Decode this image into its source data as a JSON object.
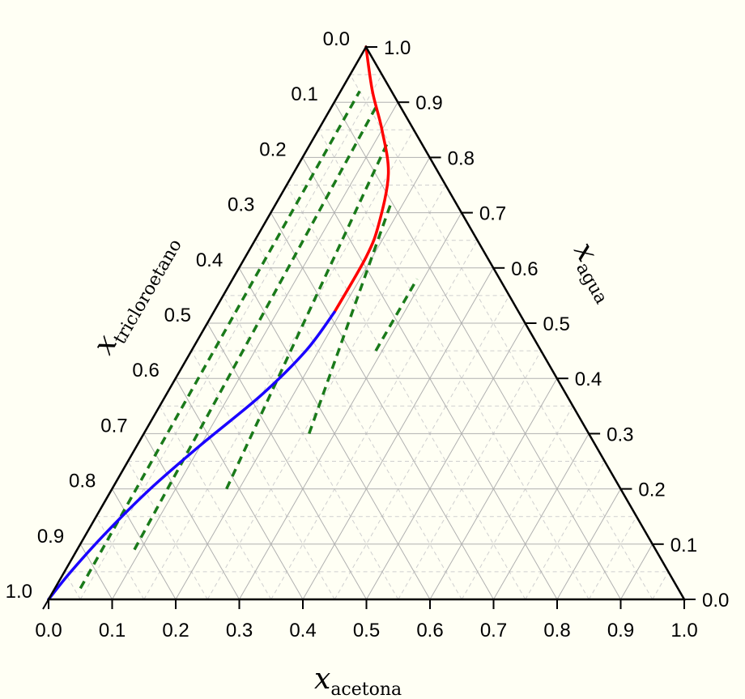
{
  "chart_data": {
    "type": "ternary",
    "axes": {
      "bottom": {
        "symbol": "x",
        "subscript": "acetona",
        "ticks": [
          "0.0",
          "0.1",
          "0.2",
          "0.3",
          "0.4",
          "0.5",
          "0.6",
          "0.7",
          "0.8",
          "0.9",
          "1.0"
        ]
      },
      "right": {
        "symbol": "x",
        "subscript": "agua",
        "ticks": [
          "0.0",
          "0.1",
          "0.2",
          "0.3",
          "0.4",
          "0.5",
          "0.6",
          "0.7",
          "0.8",
          "0.9",
          "1.0"
        ]
      },
      "left": {
        "symbol": "x",
        "subscript": "tricloroetano",
        "ticks": [
          "0.0",
          "0.1",
          "0.2",
          "0.3",
          "0.4",
          "0.5",
          "0.6",
          "0.7",
          "0.8",
          "0.9",
          "1.0"
        ]
      }
    },
    "grid": true,
    "minor_grid": true,
    "series": [
      {
        "role": "binodal_upper",
        "color": "#ff0000",
        "points": [
          {
            "acetona": 0.0,
            "agua": 1.0
          },
          {
            "acetona": 0.05,
            "agua": 0.92
          },
          {
            "acetona": 0.1,
            "agua": 0.85
          },
          {
            "acetona": 0.15,
            "agua": 0.77
          },
          {
            "acetona": 0.18,
            "agua": 0.68
          },
          {
            "acetona": 0.19,
            "agua": 0.62
          },
          {
            "acetona": 0.19,
            "agua": 0.52
          }
        ]
      },
      {
        "role": "binodal_lower",
        "color": "#1a00ff",
        "points": [
          {
            "acetona": 0.19,
            "agua": 0.52
          },
          {
            "acetona": 0.18,
            "agua": 0.45
          },
          {
            "acetona": 0.15,
            "agua": 0.37
          },
          {
            "acetona": 0.1,
            "agua": 0.28
          },
          {
            "acetona": 0.06,
            "agua": 0.2
          },
          {
            "acetona": 0.03,
            "agua": 0.12
          },
          {
            "acetona": 0.01,
            "agua": 0.05
          },
          {
            "acetona": 0.0,
            "agua": 0.0
          }
        ]
      }
    ],
    "tie_lines": {
      "color": "#1a7a1a",
      "style": "dashed",
      "lines": [
        [
          {
            "acetona": 0.04,
            "agua": 0.02
          },
          {
            "acetona": 0.03,
            "agua": 0.92
          }
        ],
        [
          {
            "acetona": 0.09,
            "agua": 0.09
          },
          {
            "acetona": 0.07,
            "agua": 0.89
          }
        ],
        [
          {
            "acetona": 0.18,
            "agua": 0.2
          },
          {
            "acetona": 0.12,
            "agua": 0.83
          }
        ],
        [
          {
            "acetona": 0.26,
            "agua": 0.3
          },
          {
            "acetona": 0.18,
            "agua": 0.72
          }
        ],
        [
          {
            "acetona": 0.29,
            "agua": 0.45
          },
          {
            "acetona": 0.29,
            "agua": 0.58
          }
        ]
      ]
    }
  }
}
